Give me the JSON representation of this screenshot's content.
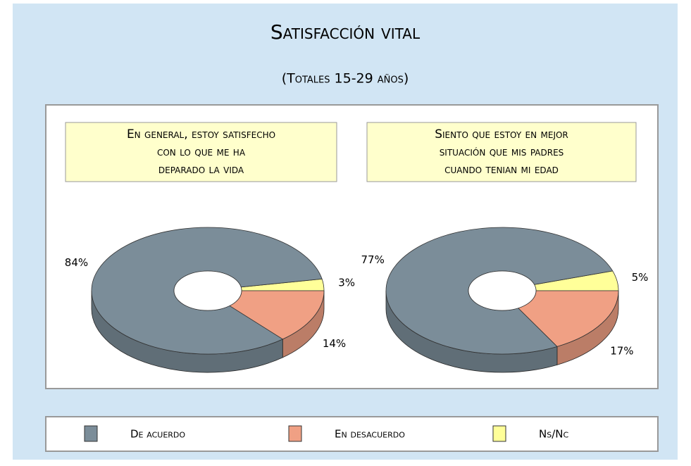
{
  "title": "Satisfacción vital",
  "subtitle": "(Totales 15-29 años)",
  "chart_data": [
    {
      "type": "pie",
      "title": [
        "En general, estoy satisfecho",
        "con lo que me ha",
        "deparado la vida"
      ],
      "categories": [
        "De acuerdo",
        "En desacuerdo",
        "Ns/Nc"
      ],
      "values": [
        84,
        14,
        3
      ],
      "value_labels": [
        "84%",
        "14%",
        "3%"
      ],
      "colors": [
        "#7b8d99",
        "#f0a084",
        "#ffff99"
      ]
    },
    {
      "type": "pie",
      "title": [
        "Siento que estoy en mejor",
        "situación que mis padres",
        "cuando tenian mi edad"
      ],
      "categories": [
        "De acuerdo",
        "En desacuerdo",
        "Ns/Nc"
      ],
      "values": [
        77,
        17,
        5
      ],
      "value_labels": [
        "77%",
        "17%",
        "5%"
      ],
      "colors": [
        "#7b8d99",
        "#f0a084",
        "#ffff99"
      ]
    }
  ]
}
